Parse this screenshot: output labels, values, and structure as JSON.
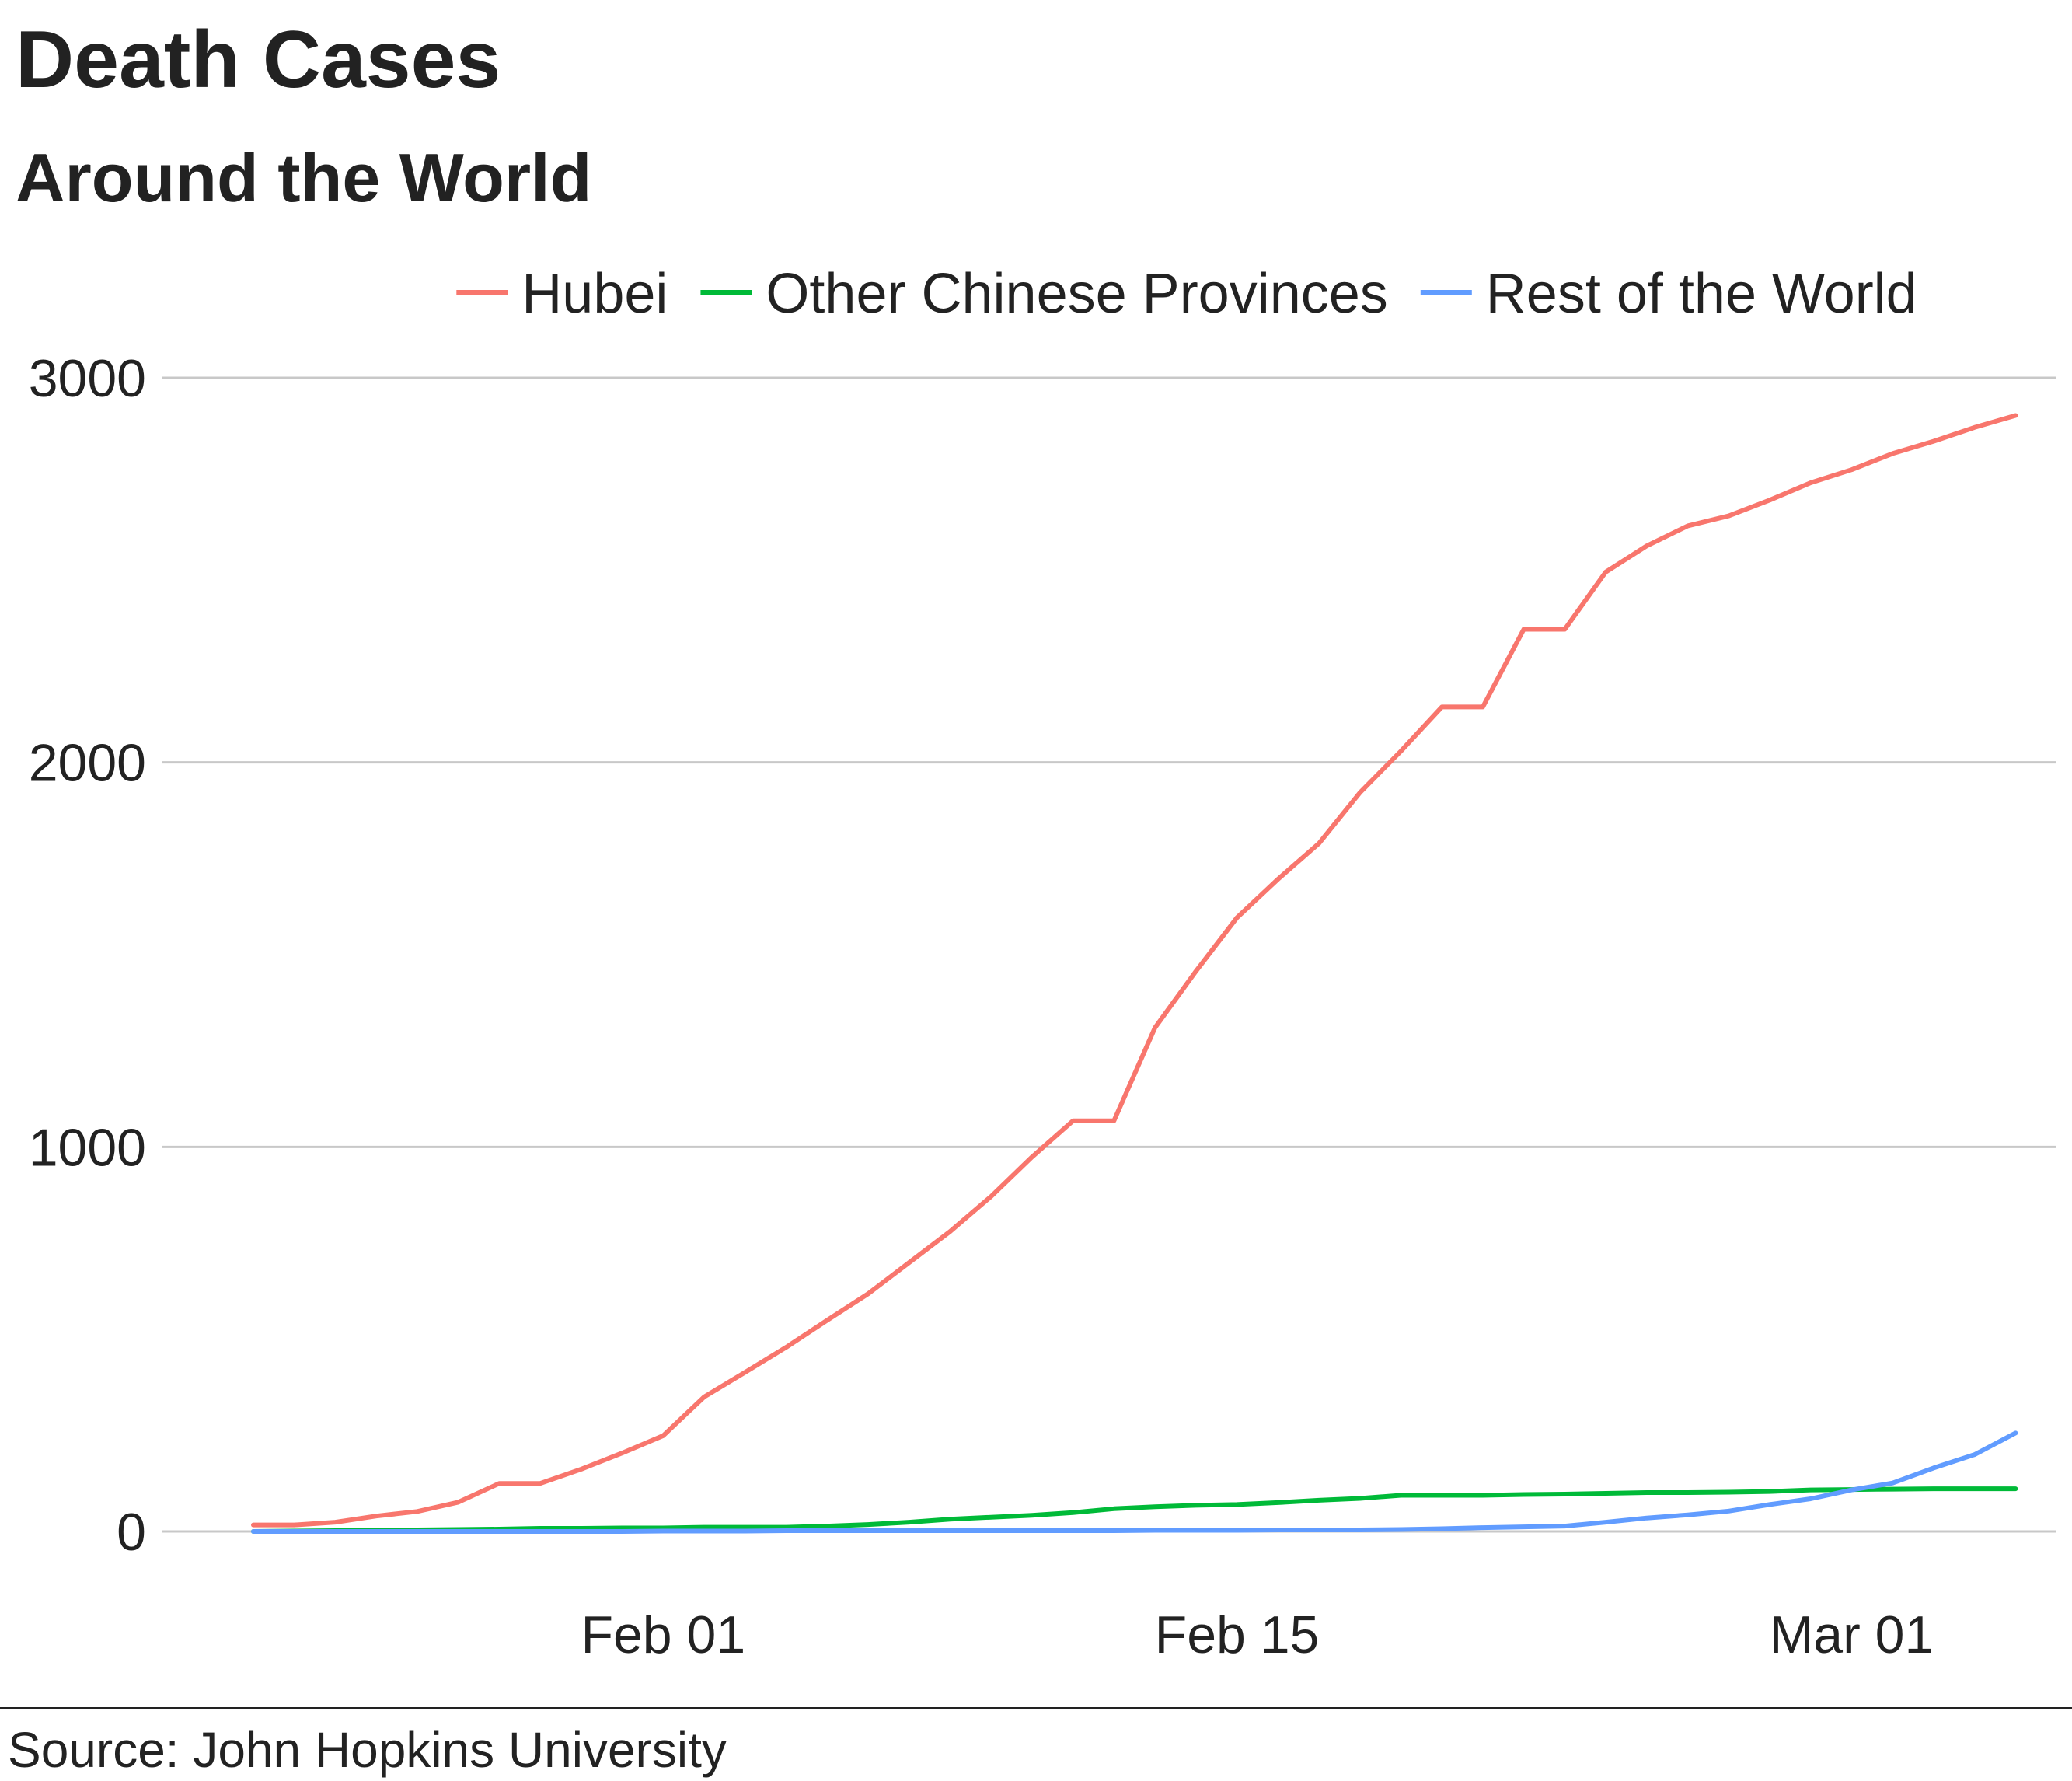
{
  "title": "Death Cases",
  "subtitle": "Around the World",
  "caption": "Source: John Hopkins University",
  "chart_data": {
    "type": "line",
    "title": "Death Cases",
    "subtitle": "Around the World",
    "xlabel": "",
    "ylabel": "",
    "x": [
      "2020-01-22",
      "2020-01-23",
      "2020-01-24",
      "2020-01-25",
      "2020-01-26",
      "2020-01-27",
      "2020-01-28",
      "2020-01-29",
      "2020-01-30",
      "2020-01-31",
      "2020-02-01",
      "2020-02-02",
      "2020-02-03",
      "2020-02-04",
      "2020-02-05",
      "2020-02-06",
      "2020-02-07",
      "2020-02-08",
      "2020-02-09",
      "2020-02-10",
      "2020-02-11",
      "2020-02-12",
      "2020-02-13",
      "2020-02-14",
      "2020-02-15",
      "2020-02-16",
      "2020-02-17",
      "2020-02-18",
      "2020-02-19",
      "2020-02-20",
      "2020-02-21",
      "2020-02-22",
      "2020-02-23",
      "2020-02-24",
      "2020-02-25",
      "2020-02-26",
      "2020-02-27",
      "2020-02-28",
      "2020-02-29",
      "2020-03-01",
      "2020-03-02",
      "2020-03-03",
      "2020-03-04",
      "2020-03-05"
    ],
    "x_ticks": [
      {
        "date": "2020-02-01",
        "label": "Feb 01"
      },
      {
        "date": "2020-02-15",
        "label": "Feb 15"
      },
      {
        "date": "2020-03-01",
        "label": "Mar 01"
      }
    ],
    "ylim": [
      -150,
      3230
    ],
    "y_ticks": [
      0,
      1000,
      2000,
      3000
    ],
    "grid": "horizontal",
    "legend_position": "top",
    "series": [
      {
        "name": "Hubei",
        "color": "#F8766D",
        "values": [
          17,
          17,
          24,
          40,
          52,
          76,
          125,
          125,
          162,
          204,
          249,
          350,
          414,
          479,
          549,
          618,
          699,
          780,
          871,
          974,
          1068,
          1068,
          1310,
          1457,
          1596,
          1696,
          1789,
          1921,
          2029,
          2144,
          2144,
          2346,
          2346,
          2495,
          2563,
          2615,
          2641,
          2682,
          2727,
          2761,
          2803,
          2835,
          2871,
          2902
        ]
      },
      {
        "name": "Other Chinese Provinces",
        "color": "#00BA38",
        "values": [
          0,
          1,
          2,
          2,
          4,
          5,
          6,
          8,
          8,
          9,
          9,
          11,
          11,
          11,
          14,
          18,
          24,
          32,
          37,
          42,
          49,
          59,
          64,
          68,
          70,
          75,
          81,
          86,
          94,
          94,
          94,
          96,
          97,
          99,
          101,
          101,
          102,
          104,
          108,
          109,
          110,
          111,
          111,
          111
        ]
      },
      {
        "name": "Rest of the World",
        "color": "#619CFF",
        "values": [
          0,
          0,
          0,
          0,
          0,
          0,
          0,
          0,
          0,
          0,
          1,
          1,
          1,
          2,
          2,
          2,
          2,
          2,
          2,
          2,
          2,
          2,
          3,
          3,
          3,
          4,
          4,
          4,
          5,
          7,
          10,
          12,
          14,
          24,
          35,
          43,
          53,
          70,
          85,
          108,
          126,
          165,
          200,
          256
        ]
      }
    ]
  }
}
